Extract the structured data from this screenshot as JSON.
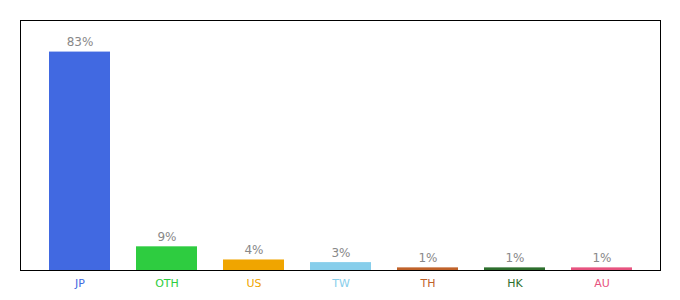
{
  "chart_data": {
    "type": "bar",
    "categories": [
      "JP",
      "OTH",
      "US",
      "TW",
      "TH",
      "HK",
      "AU"
    ],
    "values": [
      83,
      9,
      4,
      3,
      1,
      1,
      1
    ],
    "value_labels": [
      "83%",
      "9%",
      "4%",
      "3%",
      "1%",
      "1%",
      "1%"
    ],
    "colors": [
      "#4169e1",
      "#2ecc40",
      "#f0a500",
      "#87ceeb",
      "#c0622a",
      "#2d6e2d",
      "#e75480"
    ],
    "ylim": [
      0,
      95
    ],
    "data_labels": true,
    "tick_labels": "x",
    "grid": false
  }
}
